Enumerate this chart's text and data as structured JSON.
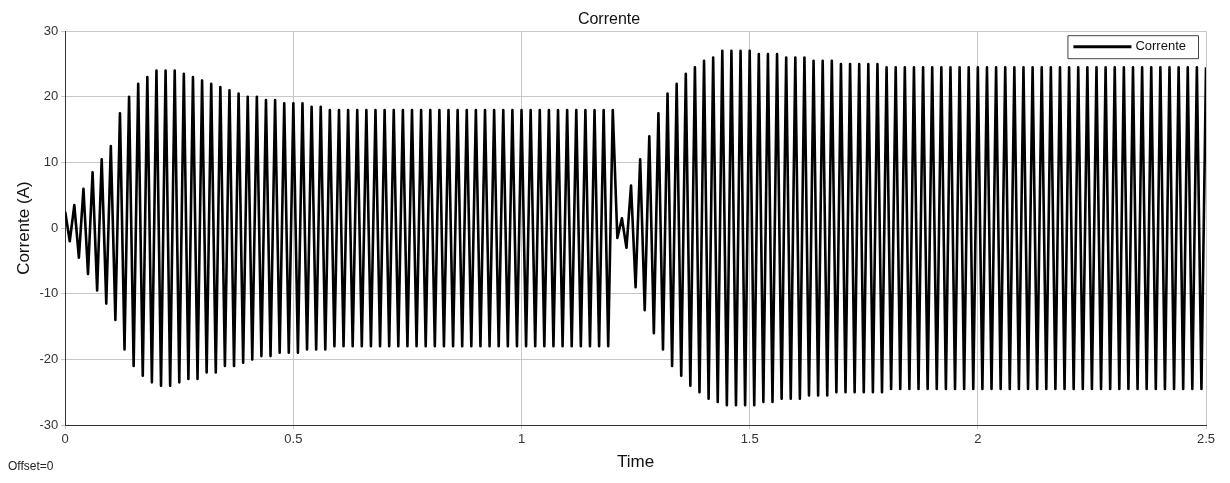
{
  "chart_data": {
    "type": "line",
    "title": "Corrente",
    "xlabel": "Time",
    "ylabel": "Corrente (A)",
    "annotations": [
      "Offset=0"
    ],
    "xlim": [
      0,
      2.5
    ],
    "xticks": [
      0,
      0.5,
      1,
      1.5,
      2,
      2.5
    ],
    "ylim": [
      -30,
      30
    ],
    "yticks": [
      -30,
      -20,
      -10,
      0,
      10,
      20,
      30
    ],
    "grid": true,
    "legend": "top right",
    "marker": "none",
    "line_style": "solid",
    "x": [
      0,
      0.01,
      0.02,
      0.03,
      0.04,
      0.05,
      0.06,
      0.07,
      0.08,
      0.09,
      0.1,
      0.11,
      0.12,
      0.13,
      0.14,
      0.15,
      0.16,
      0.17,
      0.18,
      0.19,
      0.2,
      0.21,
      0.22,
      0.23,
      0.24,
      0.25,
      0.26,
      0.27,
      0.28,
      0.29,
      0.3,
      0.31,
      0.32,
      0.33,
      0.34,
      0.35,
      0.36,
      0.37,
      0.38,
      0.39,
      0.4,
      0.41,
      0.42,
      0.43,
      0.44,
      0.45,
      0.46,
      0.47,
      0.48,
      0.49,
      0.5,
      0.51,
      0.52,
      0.53,
      0.54,
      0.55,
      0.56,
      0.57,
      0.58,
      0.59,
      0.6,
      0.61,
      0.62,
      0.63,
      0.64,
      0.65,
      0.66,
      0.67,
      0.68,
      0.69,
      0.7,
      0.71,
      0.72,
      0.73,
      0.74,
      0.75,
      0.76,
      0.77,
      0.78,
      0.79,
      0.8,
      0.81,
      0.82,
      0.83,
      0.84,
      0.85,
      0.86,
      0.87,
      0.88,
      0.89,
      0.9,
      0.91,
      0.92,
      0.93,
      0.94,
      0.95,
      0.96,
      0.97,
      0.98,
      0.99,
      1,
      1.01,
      1.02,
      1.03,
      1.04,
      1.05,
      1.06,
      1.07,
      1.08,
      1.09,
      1.1,
      1.11,
      1.12,
      1.13,
      1.14,
      1.15,
      1.16,
      1.17,
      1.18,
      1.19,
      1.2,
      1.21,
      1.22,
      1.23,
      1.24,
      1.25,
      1.26,
      1.27,
      1.28,
      1.29,
      1.3,
      1.31,
      1.32,
      1.33,
      1.34,
      1.35,
      1.36,
      1.37,
      1.38,
      1.39,
      1.4,
      1.41,
      1.42,
      1.43,
      1.44,
      1.45,
      1.46,
      1.47,
      1.48,
      1.49,
      1.5,
      1.51,
      1.52,
      1.53,
      1.54,
      1.55,
      1.56,
      1.57,
      1.58,
      1.59,
      1.6,
      1.61,
      1.62,
      1.63,
      1.64,
      1.65,
      1.66,
      1.67,
      1.68,
      1.69,
      1.7,
      1.71,
      1.72,
      1.73,
      1.74,
      1.75,
      1.76,
      1.77,
      1.78,
      1.79,
      1.8,
      1.81,
      1.82,
      1.83,
      1.84,
      1.85,
      1.86,
      1.87,
      1.88,
      1.89,
      1.9,
      1.91,
      1.92,
      1.93,
      1.94,
      1.95,
      1.96,
      1.97,
      1.98,
      1.99,
      2,
      2.01,
      2.02,
      2.03,
      2.04,
      2.05,
      2.06,
      2.07,
      2.08,
      2.09,
      2.1,
      2.11,
      2.12,
      2.13,
      2.14,
      2.15,
      2.16,
      2.17,
      2.18,
      2.19,
      2.2,
      2.21,
      2.22,
      2.23,
      2.24,
      2.25,
      2.26,
      2.27,
      2.28,
      2.29,
      2.3,
      2.31,
      2.32,
      2.33,
      2.34,
      2.35,
      2.36,
      2.37,
      2.38,
      2.39,
      2.4,
      2.41,
      2.42,
      2.43,
      2.44,
      2.45,
      2.46,
      2.47,
      2.48,
      2.49,
      2.5
    ],
    "series": [
      {
        "name": "Corrente",
        "color": "#000000",
        "values": [
          2.5,
          -2,
          3.5,
          -4.5,
          6,
          -7,
          8.5,
          -9.5,
          10.5,
          -11.5,
          12.5,
          -14,
          17.5,
          -18.5,
          20,
          -21,
          22,
          -22.5,
          23,
          -23.5,
          24,
          -24,
          24,
          -24,
          24,
          -23.5,
          23.5,
          -23,
          23,
          -23,
          22.5,
          -22,
          22,
          -22,
          21.5,
          -21,
          21,
          -21,
          20.5,
          -20.5,
          20,
          -20,
          20,
          -19.5,
          19.5,
          -19.5,
          19.5,
          -19,
          19,
          -19,
          19,
          -19,
          19,
          -18.5,
          18.5,
          -18.5,
          18.5,
          -18.5,
          18,
          -18,
          18,
          -18,
          18,
          -18,
          18,
          -18,
          18,
          -18,
          18,
          -18,
          18,
          -18,
          18,
          -18,
          18,
          -18,
          18,
          -18,
          18,
          -18,
          18,
          -18,
          18,
          -18,
          18,
          -18,
          18,
          -18,
          18,
          -18,
          18,
          -18,
          18,
          -18,
          18,
          -18,
          18,
          -18,
          18,
          -18,
          18,
          -18,
          18,
          -18,
          18,
          -18,
          18,
          -18,
          18,
          -18,
          18,
          -18,
          18,
          -18,
          18,
          -18,
          18,
          -18,
          18,
          -18,
          18,
          -1.5,
          1.5,
          -3,
          6.5,
          -9,
          10.5,
          -12.5,
          14,
          -16,
          17.5,
          -18.5,
          20.5,
          -21,
          22,
          -22.5,
          23.5,
          -24,
          24.5,
          -25,
          25.5,
          -26,
          26,
          -26.5,
          27,
          -27,
          27,
          -27,
          27,
          -27,
          27,
          -27,
          26.5,
          -26.5,
          26.5,
          -26.5,
          26.5,
          -26,
          26,
          -26,
          26,
          -26,
          26,
          -25.5,
          25.5,
          -25.5,
          25.5,
          -25.5,
          25.5,
          -25,
          25,
          -25,
          25,
          -25,
          25,
          -25,
          25,
          -25,
          25,
          -25,
          24.5,
          -24.5,
          24.5,
          -24.5,
          24.5,
          -24.5,
          24.5,
          -24.5,
          24.5,
          -24.5,
          24.5,
          -24.5,
          24.5,
          -24.5,
          24.5,
          -24.5,
          24.5,
          -24.5,
          24.5,
          -24.5,
          24.5,
          -24.5,
          24.5,
          -24.5,
          24.5,
          -24.5,
          24.5,
          -24.5,
          24.5,
          -24.5,
          24.5,
          -24.5,
          24.5,
          -24.5,
          24.5,
          -24.5,
          24.5,
          -24.5,
          24.5,
          -24.5,
          24.5,
          -24.5,
          24.5,
          -24.5,
          24.5,
          -24.5,
          24.5,
          -24.5,
          24.5,
          -24.5,
          24.5,
          -24.5,
          24.5,
          -24.5,
          24.5,
          -24.5,
          24.5,
          -24.5,
          24.5,
          -24.5,
          24.5,
          -24.5,
          24.5,
          -24.5,
          24.5,
          -24.5,
          24.5,
          -24.5,
          24.5,
          -24.5,
          24.5
        ]
      }
    ]
  }
}
